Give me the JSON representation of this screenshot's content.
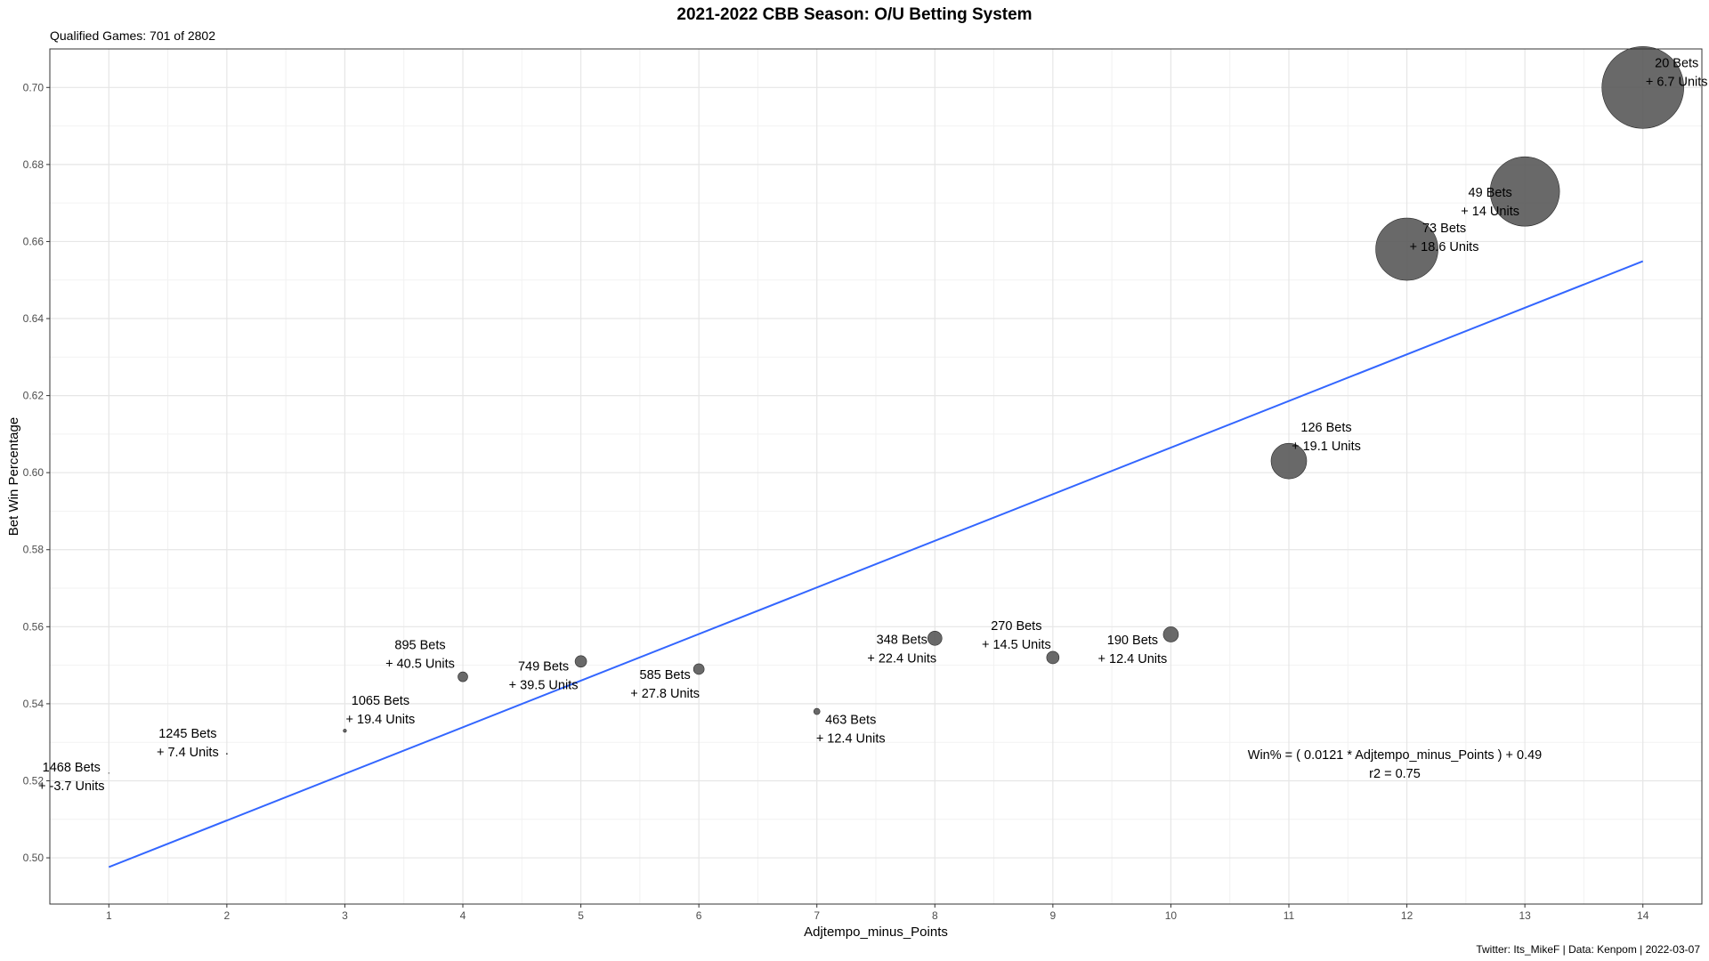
{
  "chart_data": {
    "type": "scatter",
    "title": "2021-2022 CBB Season: O/U Betting System",
    "subtitle": "Qualified Games: 701 of 2802",
    "caption": "Twitter: Its_MikeF | Data: Kenpom | 2022-03-07",
    "xlabel": "Adjtempo_minus_Points",
    "ylabel": "Bet Win Percentage",
    "xlim": [
      0.5,
      14.5
    ],
    "ylim": [
      0.488,
      0.71
    ],
    "x_ticks": [
      1,
      2,
      3,
      4,
      5,
      6,
      7,
      8,
      9,
      10,
      11,
      12,
      13,
      14
    ],
    "y_ticks": [
      0.5,
      0.52,
      0.54,
      0.56,
      0.58,
      0.6,
      0.62,
      0.64,
      0.66,
      0.68,
      0.7
    ],
    "grid": true,
    "points": [
      {
        "x": 1,
        "y": 0.522,
        "bets": "1468 Bets",
        "units": "+ -3.7 Units",
        "size": 0.3
      },
      {
        "x": 2,
        "y": 0.527,
        "bets": "1245 Bets",
        "units": "+ 7.4 Units",
        "size": 0.6
      },
      {
        "x": 3,
        "y": 0.533,
        "bets": "1065 Bets",
        "units": "+ 19.4 Units",
        "size": 1.8
      },
      {
        "x": 4,
        "y": 0.547,
        "bets": "895 Bets",
        "units": "+ 40.5 Units",
        "size": 5.5
      },
      {
        "x": 5,
        "y": 0.551,
        "bets": "749 Bets",
        "units": "+ 39.5 Units",
        "size": 6.5
      },
      {
        "x": 6,
        "y": 0.549,
        "bets": "585 Bets",
        "units": "+ 27.8 Units",
        "size": 6
      },
      {
        "x": 7,
        "y": 0.538,
        "bets": "463 Bets",
        "units": "+ 12.4 Units",
        "size": 3.5
      },
      {
        "x": 8,
        "y": 0.557,
        "bets": "348 Bets",
        "units": "+ 22.4 Units",
        "size": 8
      },
      {
        "x": 9,
        "y": 0.552,
        "bets": "270 Bets",
        "units": "+ 14.5 Units",
        "size": 7
      },
      {
        "x": 10,
        "y": 0.558,
        "bets": "190 Bets",
        "units": "+ 12.4 Units",
        "size": 8.5
      },
      {
        "x": 11,
        "y": 0.603,
        "bets": "126 Bets",
        "units": "+ 19.1 Units",
        "size": 20
      },
      {
        "x": 12,
        "y": 0.658,
        "bets": "73 Bets",
        "units": "+ 18.6 Units",
        "size": 35
      },
      {
        "x": 13,
        "y": 0.673,
        "bets": "49 Bets",
        "units": "+ 14 Units",
        "size": 39
      },
      {
        "x": 14,
        "y": 0.7,
        "bets": "20 Bets",
        "units": "+ 6.7 Units",
        "size": 46
      }
    ],
    "trendline": {
      "slope": 0.0121,
      "intercept": 0.4855,
      "x_range": [
        1,
        14
      ],
      "color": "#3366ff"
    },
    "equation": "Win% = ( 0.0121 * Adjtempo_minus_Points ) + 0.49",
    "r2_text": "r2 = 0.75",
    "point_color": "#595959"
  }
}
